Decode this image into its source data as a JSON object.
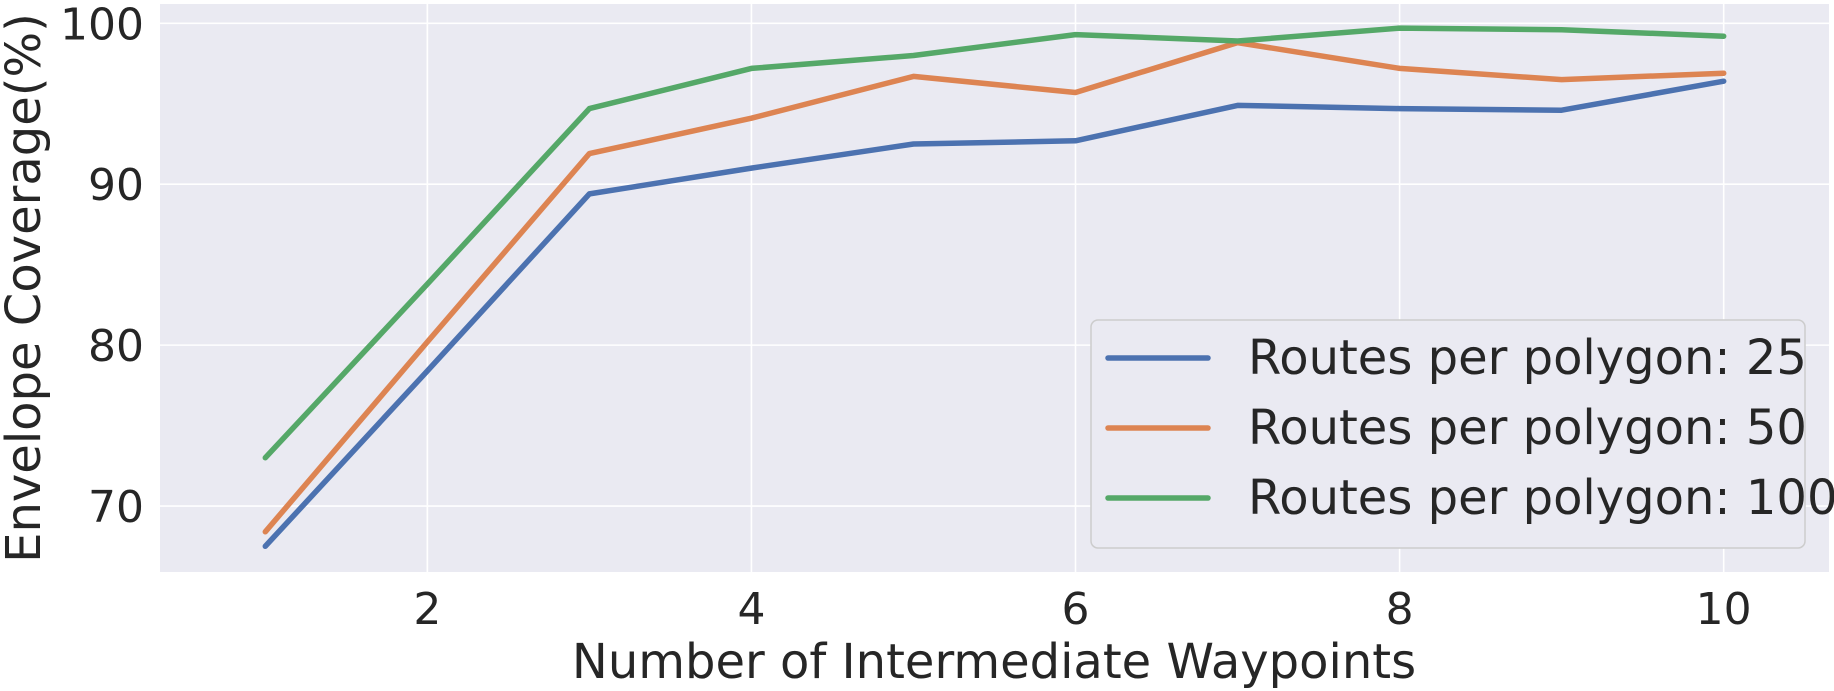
{
  "chart_data": {
    "type": "line",
    "xlabel": "Number of Intermediate Waypoints",
    "ylabel": "Envelope Coverage(%)",
    "xlim": [
      0.35,
      10.65
    ],
    "ylim": [
      65.9,
      101.2
    ],
    "xticks": [
      2,
      4,
      6,
      8,
      10
    ],
    "yticks": [
      70,
      80,
      90,
      100
    ],
    "grid": true,
    "legend_position": "lower-right",
    "x": [
      1,
      2,
      3,
      4,
      5,
      6,
      7,
      8,
      9,
      10
    ],
    "series": [
      {
        "name": "Routes per polygon: 25",
        "color": "#4c72b0",
        "values": [
          67.5,
          78.4,
          89.4,
          91.0,
          92.5,
          92.7,
          94.9,
          94.7,
          94.6,
          96.4
        ]
      },
      {
        "name": "Routes per polygon: 50",
        "color": "#dd8452",
        "values": [
          68.4,
          80.2,
          91.9,
          94.1,
          96.7,
          95.7,
          98.8,
          97.2,
          96.5,
          96.9
        ]
      },
      {
        "name": "Routes per polygon: 100",
        "color": "#55a868",
        "values": [
          73.0,
          83.8,
          94.7,
          97.2,
          98.0,
          99.3,
          98.9,
          99.7,
          99.6,
          99.2
        ]
      }
    ]
  },
  "style": {
    "plot_background": "#eaeaf2",
    "grid_color": "#ffffff",
    "text_color": "#262626"
  }
}
